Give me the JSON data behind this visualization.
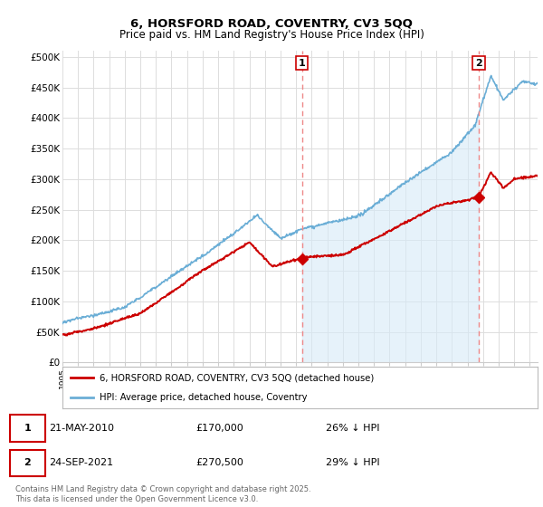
{
  "title1": "6, HORSFORD ROAD, COVENTRY, CV3 5QQ",
  "title2": "Price paid vs. HM Land Registry's House Price Index (HPI)",
  "ylabel_ticks": [
    "£0",
    "£50K",
    "£100K",
    "£150K",
    "£200K",
    "£250K",
    "£300K",
    "£350K",
    "£400K",
    "£450K",
    "£500K"
  ],
  "ytick_values": [
    0,
    50000,
    100000,
    150000,
    200000,
    250000,
    300000,
    350000,
    400000,
    450000,
    500000
  ],
  "xlim_start": 1995,
  "xlim_end": 2025.5,
  "ylim_min": 0,
  "ylim_max": 510000,
  "hpi_color": "#6baed6",
  "hpi_fill_color": "#d6eaf8",
  "price_color": "#cc0000",
  "dashed_line_color": "#e88",
  "marker1_year": 2010.38,
  "marker2_year": 2021.73,
  "marker1_price": 170000,
  "marker2_price": 270500,
  "sale1_date": "21-MAY-2010",
  "sale1_price": "£170,000",
  "sale1_note": "26% ↓ HPI",
  "sale2_date": "24-SEP-2021",
  "sale2_price": "£270,500",
  "sale2_note": "29% ↓ HPI",
  "legend1": "6, HORSFORD ROAD, COVENTRY, CV3 5QQ (detached house)",
  "legend2": "HPI: Average price, detached house, Coventry",
  "footer": "Contains HM Land Registry data © Crown copyright and database right 2025.\nThis data is licensed under the Open Government Licence v3.0.",
  "background_color": "#ffffff",
  "grid_color": "#dddddd"
}
